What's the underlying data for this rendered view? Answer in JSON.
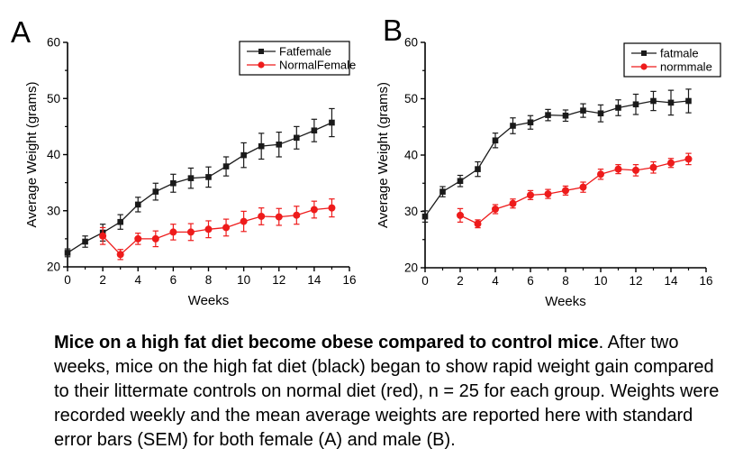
{
  "caption": {
    "bold": "Mice on a high fat diet become obese compared to control mice",
    "rest": ". After two weeks, mice on the high fat diet (black) began to show rapid weight gain compared to their littermate controls on normal diet (red), n = 25 for each group. Weights were recorded weekly and the mean average weights are reported here with standard error bars (SEM) for both female (A) and male (B)."
  },
  "colors": {
    "high_fat_series": "#1a1a1a",
    "control_series": "#ee1b1b",
    "axis": "#000000",
    "legend_border": "#000000",
    "background": "#ffffff"
  },
  "chart_data": [
    {
      "type": "line",
      "panel_label": "A",
      "xlabel": "Weeks",
      "ylabel": "Average Weight (grams)",
      "xlim": [
        0,
        16
      ],
      "ylim": [
        20,
        60
      ],
      "xticks": [
        0,
        2,
        4,
        6,
        8,
        10,
        12,
        14,
        16
      ],
      "yticks": [
        20,
        30,
        40,
        50,
        60
      ],
      "x_minor_ticks": [
        1,
        3,
        5,
        7,
        9,
        11,
        13,
        15
      ],
      "y_minor_ticks": [
        25,
        35,
        45,
        55
      ],
      "grid": false,
      "error_bars": "SEM",
      "legend_position": "top-right",
      "series": [
        {
          "name": "Fatfemale",
          "color": "#1a1a1a",
          "marker": "square",
          "x": [
            0,
            1,
            2,
            3,
            4,
            5,
            6,
            7,
            8,
            9,
            10,
            11,
            12,
            13,
            14,
            15
          ],
          "y": [
            22.5,
            24.5,
            26.1,
            28.0,
            31.1,
            33.4,
            34.9,
            35.8,
            36.0,
            37.9,
            39.9,
            41.5,
            41.8,
            43.0,
            44.3,
            45.7
          ],
          "err": [
            0.7,
            1.0,
            1.5,
            1.3,
            1.3,
            1.5,
            1.6,
            1.8,
            1.8,
            1.7,
            2.2,
            2.3,
            2.2,
            2.0,
            2.0,
            2.5
          ]
        },
        {
          "name": "NormalFemale",
          "color": "#ee1b1b",
          "marker": "circle",
          "x": [
            2,
            3,
            4,
            5,
            6,
            7,
            8,
            9,
            10,
            11,
            12,
            13,
            14,
            15
          ],
          "y": [
            25.5,
            22.2,
            25.0,
            25.0,
            26.2,
            26.2,
            26.7,
            27.0,
            28.1,
            29.0,
            28.9,
            29.2,
            30.2,
            30.5
          ],
          "err": [
            1.5,
            0.9,
            1.0,
            1.4,
            1.4,
            1.5,
            1.5,
            1.5,
            1.8,
            1.5,
            1.5,
            1.6,
            1.5,
            1.6
          ]
        }
      ]
    },
    {
      "type": "line",
      "panel_label": "B",
      "xlabel": "Weeks",
      "ylabel": "Average Weight (grams)",
      "xlim": [
        0,
        16
      ],
      "ylim": [
        20,
        60
      ],
      "xticks": [
        0,
        2,
        4,
        6,
        8,
        10,
        12,
        14,
        16
      ],
      "yticks": [
        20,
        30,
        40,
        50,
        60
      ],
      "x_minor_ticks": [
        1,
        3,
        5,
        7,
        9,
        11,
        13,
        15
      ],
      "y_minor_ticks": [
        25,
        35,
        45,
        55
      ],
      "grid": false,
      "error_bars": "SEM",
      "legend_position": "top-right",
      "series": [
        {
          "name": "fatmale",
          "color": "#1a1a1a",
          "marker": "square",
          "x": [
            0,
            1,
            2,
            3,
            4,
            5,
            6,
            7,
            8,
            9,
            10,
            11,
            12,
            13,
            14,
            15
          ],
          "y": [
            29.1,
            33.5,
            35.4,
            37.5,
            42.6,
            45.2,
            45.8,
            47.1,
            47.0,
            47.9,
            47.4,
            48.4,
            49.0,
            49.6,
            49.3,
            49.6
          ],
          "err": [
            1.0,
            0.9,
            1.0,
            1.3,
            1.3,
            1.4,
            1.2,
            1.0,
            1.0,
            1.2,
            1.5,
            1.4,
            1.8,
            1.7,
            2.2,
            2.1
          ]
        },
        {
          "name": "normmale",
          "color": "#ee1b1b",
          "marker": "circle",
          "x": [
            2,
            3,
            4,
            5,
            6,
            7,
            8,
            9,
            10,
            11,
            12,
            13,
            14,
            15
          ],
          "y": [
            29.3,
            27.8,
            30.4,
            31.4,
            32.9,
            33.1,
            33.7,
            34.3,
            36.6,
            37.5,
            37.3,
            37.8,
            38.6,
            39.3
          ],
          "err": [
            1.2,
            0.7,
            0.8,
            0.8,
            0.8,
            0.8,
            0.8,
            0.9,
            0.9,
            0.8,
            1.0,
            1.0,
            0.8,
            1.0
          ]
        }
      ]
    }
  ]
}
